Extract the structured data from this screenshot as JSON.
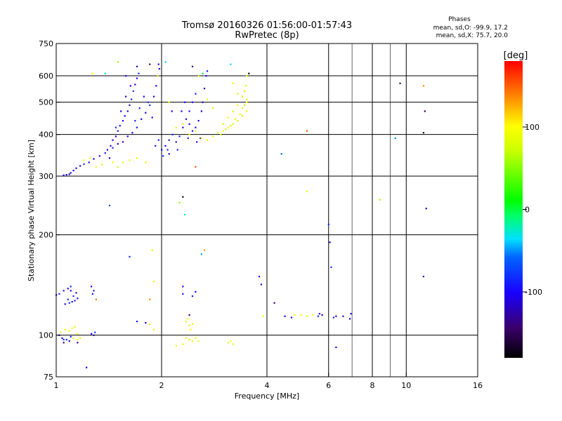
{
  "chart_data": {
    "type": "scatter",
    "title": "Tromsø 20160326 01:56:00-01:57:43",
    "subtitle": "RwPretec (8p)",
    "xlabel": "Frequency [MHz]",
    "ylabel": "Stationary phase Virtual Height [km]",
    "x_scale": "log",
    "y_scale": "log",
    "xlim": [
      1,
      16
    ],
    "ylim": [
      75,
      750
    ],
    "x_ticks": [
      1,
      2,
      4,
      6,
      8,
      10,
      16
    ],
    "x_tick_labels": [
      "1",
      "2",
      "4",
      "6",
      "8",
      "10",
      "16"
    ],
    "x_grid": [
      2,
      4,
      6,
      8,
      10
    ],
    "x_minor_grid": [
      7,
      9
    ],
    "y_ticks": [
      75,
      100,
      200,
      300,
      400,
      500,
      600,
      750
    ],
    "y_tick_labels": [
      "75",
      "100",
      "200",
      "300",
      "400",
      "500",
      "600",
      "750"
    ],
    "y_grid": [
      100,
      200,
      300,
      400,
      500,
      600
    ],
    "grid": true,
    "info": {
      "heading": "Phases",
      "line1": "mean, sd,O: -99.9, 17.2",
      "line2": "mean, sd,X: 75.7, 20.0"
    },
    "colorbar": {
      "label": "[deg]",
      "range": [
        -180,
        180
      ],
      "ticks": [
        100,
        0,
        -100
      ],
      "tick_labels": [
        "100",
        "0",
        "-100"
      ],
      "colormap": "rainbow: black(-180) → purple → blue(-100) → cyan(-40) → green(0) → yellow(100) → orange → red(180)"
    },
    "series": [
      {
        "role": "O-mode F-layer trace (blue, phase ≈ -100°)",
        "phase": -100,
        "points": [
          [
            1.05,
            302
          ],
          [
            1.07,
            303
          ],
          [
            1.09,
            304
          ],
          [
            1.1,
            307
          ],
          [
            1.12,
            312
          ],
          [
            1.14,
            317
          ],
          [
            1.17,
            322
          ],
          [
            1.2,
            326
          ],
          [
            1.24,
            330
          ],
          [
            1.28,
            338
          ],
          [
            1.33,
            345
          ],
          [
            1.38,
            352
          ],
          [
            1.4,
            360
          ],
          [
            1.43,
            370
          ],
          [
            1.45,
            385
          ],
          [
            1.48,
            395
          ],
          [
            1.5,
            410
          ],
          [
            1.52,
            425
          ],
          [
            1.55,
            440
          ],
          [
            1.57,
            455
          ],
          [
            1.6,
            470
          ],
          [
            1.62,
            490
          ],
          [
            1.64,
            510
          ],
          [
            1.66,
            540
          ],
          [
            1.68,
            565
          ],
          [
            1.7,
            590
          ],
          [
            1.72,
            610
          ],
          [
            1.55,
            380
          ],
          [
            1.6,
            395
          ],
          [
            1.65,
            405
          ],
          [
            1.7,
            420
          ],
          [
            1.75,
            445
          ],
          [
            1.8,
            465
          ],
          [
            1.85,
            490
          ],
          [
            1.9,
            520
          ],
          [
            1.93,
            560
          ],
          [
            1.95,
            600
          ],
          [
            1.97,
            630
          ],
          [
            1.92,
            370
          ],
          [
            1.96,
            385
          ],
          [
            2.0,
            360
          ],
          [
            2.05,
            370
          ],
          [
            2.1,
            385
          ],
          [
            2.15,
            400
          ],
          [
            2.2,
            380
          ],
          [
            2.25,
            395
          ],
          [
            2.3,
            420
          ],
          [
            2.35,
            445
          ],
          [
            2.4,
            470
          ],
          [
            2.45,
            500
          ],
          [
            2.5,
            530
          ],
          [
            2.45,
            410
          ],
          [
            2.5,
            420
          ],
          [
            2.55,
            440
          ],
          [
            2.6,
            470
          ],
          [
            2.62,
            500
          ],
          [
            2.65,
            550
          ],
          [
            2.68,
            600
          ],
          [
            2.7,
            620
          ],
          [
            2.58,
            390
          ],
          [
            1.48,
            420
          ],
          [
            1.53,
            470
          ],
          [
            1.58,
            520
          ],
          [
            1.63,
            560
          ],
          [
            1.78,
            520
          ],
          [
            1.83,
            500
          ],
          [
            1.88,
            450
          ],
          [
            2.28,
            470
          ],
          [
            2.33,
            500
          ],
          [
            2.1,
            350
          ],
          [
            1.45,
            365
          ],
          [
            1.5,
            375
          ],
          [
            1.42,
            340
          ],
          [
            1.68,
            440
          ],
          [
            1.73,
            480
          ],
          [
            2.02,
            345
          ],
          [
            2.08,
            360
          ],
          [
            2.22,
            360
          ],
          [
            2.38,
            390
          ],
          [
            2.52,
            380
          ],
          [
            1.58,
            600
          ],
          [
            1.7,
            640
          ],
          [
            1.96,
            650
          ],
          [
            2.14,
            470
          ],
          [
            2.4,
            430
          ]
        ]
      },
      {
        "role": "X-mode F-layer trace (green/yellow, phase ≈ 60–110°)",
        "phase": 80,
        "points": [
          [
            1.2,
            335
          ],
          [
            1.25,
            340
          ],
          [
            1.3,
            320
          ],
          [
            1.35,
            325
          ],
          [
            1.45,
            330
          ],
          [
            1.5,
            320
          ],
          [
            1.55,
            330
          ],
          [
            1.62,
            335
          ],
          [
            1.7,
            340
          ],
          [
            1.8,
            330
          ],
          [
            2.4,
            400
          ],
          [
            2.5,
            410
          ],
          [
            2.6,
            390
          ],
          [
            2.7,
            385
          ],
          [
            2.8,
            395
          ],
          [
            2.9,
            405
          ],
          [
            3.0,
            410
          ],
          [
            3.1,
            420
          ],
          [
            3.2,
            430
          ],
          [
            3.3,
            440
          ],
          [
            3.4,
            455
          ],
          [
            3.5,
            470
          ],
          [
            3.5,
            500
          ],
          [
            3.45,
            540
          ],
          [
            3.3,
            490
          ],
          [
            3.2,
            470
          ],
          [
            3.1,
            450
          ],
          [
            3.0,
            430
          ],
          [
            2.95,
            400
          ],
          [
            3.05,
            415
          ],
          [
            3.15,
            425
          ],
          [
            3.25,
            445
          ],
          [
            3.35,
            460
          ],
          [
            3.4,
            480
          ],
          [
            3.5,
            510
          ],
          [
            3.48,
            560
          ],
          [
            2.3,
            430
          ],
          [
            2.2,
            420
          ],
          [
            2.1,
            500
          ],
          [
            2.7,
            510
          ],
          [
            2.8,
            480
          ],
          [
            3.3,
            530
          ],
          [
            3.5,
            600
          ],
          [
            3.2,
            570
          ],
          [
            2.55,
            600
          ],
          [
            3.4,
            520
          ],
          [
            3.45,
            490
          ]
        ]
      },
      {
        "role": "sparse F-region points (mixed phase)",
        "phase": 0,
        "points": [
          [
            1.5,
            660
          ],
          [
            1.85,
            650
          ],
          [
            2.05,
            660
          ],
          [
            2.45,
            640
          ],
          [
            2.62,
            610
          ],
          [
            3.15,
            650
          ],
          [
            3.55,
            610
          ],
          [
            1.27,
            610
          ],
          [
            1.38,
            610
          ],
          [
            1.95,
            600
          ],
          [
            4.4,
            350
          ],
          [
            5.2,
            410
          ],
          [
            5.2,
            270
          ],
          [
            8.4,
            255
          ],
          [
            6.0,
            215
          ],
          [
            9.3,
            390
          ],
          [
            9.6,
            570
          ],
          [
            11.2,
            560
          ],
          [
            11.3,
            470
          ],
          [
            11.2,
            405
          ],
          [
            11.4,
            240
          ],
          [
            1.42,
            245
          ],
          [
            2.3,
            260
          ],
          [
            2.25,
            250
          ],
          [
            2.33,
            230
          ],
          [
            2.6,
            175
          ]
        ]
      },
      {
        "role": "O-mode E-layer trace (blue)",
        "phase": -100,
        "points": [
          [
            1.0,
            132
          ],
          [
            1.02,
            133
          ],
          [
            1.05,
            136
          ],
          [
            1.08,
            138
          ],
          [
            1.1,
            136
          ],
          [
            1.12,
            131
          ],
          [
            1.15,
            129
          ],
          [
            1.11,
            126
          ],
          [
            1.09,
            125
          ],
          [
            1.13,
            127
          ],
          [
            1.06,
            124
          ],
          [
            1.08,
            128
          ],
          [
            1.1,
            140
          ],
          [
            1.14,
            134
          ],
          [
            1.26,
            140
          ],
          [
            1.27,
            133
          ],
          [
            1.28,
            136
          ],
          [
            1.05,
            97
          ],
          [
            1.04,
            98
          ],
          [
            1.07,
            97
          ],
          [
            1.09,
            96
          ],
          [
            1.1,
            99
          ],
          [
            1.02,
            100
          ],
          [
            1.28,
            100
          ],
          [
            1.29,
            102
          ],
          [
            1.26,
            101
          ],
          [
            1.7,
            110
          ],
          [
            1.8,
            109
          ],
          [
            2.3,
            133
          ],
          [
            2.45,
            131
          ],
          [
            2.3,
            140
          ],
          [
            2.5,
            135
          ],
          [
            1.62,
            172
          ],
          [
            3.8,
            150
          ],
          [
            3.85,
            142
          ],
          [
            4.5,
            114
          ],
          [
            4.7,
            113
          ],
          [
            5.6,
            114
          ],
          [
            5.65,
            116
          ],
          [
            5.75,
            115
          ],
          [
            6.2,
            113
          ],
          [
            6.3,
            114
          ],
          [
            6.6,
            114
          ],
          [
            6.9,
            112
          ],
          [
            6.95,
            116
          ],
          [
            6.05,
            190
          ],
          [
            6.1,
            160
          ],
          [
            6.3,
            92
          ],
          [
            11.2,
            150
          ],
          [
            1.22,
            80
          ]
        ]
      },
      {
        "role": "X-mode E-layer trace (green/yellow)",
        "phase": 85,
        "points": [
          [
            1.03,
            102
          ],
          [
            1.06,
            104
          ],
          [
            1.09,
            103
          ],
          [
            1.11,
            105
          ],
          [
            1.13,
            106
          ],
          [
            1.15,
            101
          ],
          [
            1.17,
            98
          ],
          [
            1.15,
            97
          ],
          [
            1.12,
            98
          ],
          [
            2.35,
            110
          ],
          [
            2.4,
            107
          ],
          [
            2.45,
            108
          ],
          [
            2.38,
            112
          ],
          [
            2.42,
            104
          ],
          [
            2.4,
            97
          ],
          [
            2.45,
            96
          ],
          [
            2.55,
            96
          ],
          [
            2.5,
            98
          ],
          [
            2.3,
            94
          ],
          [
            2.2,
            93
          ],
          [
            2.35,
            98
          ],
          [
            3.1,
            95
          ],
          [
            3.2,
            94
          ],
          [
            3.15,
            96
          ],
          [
            3.9,
            114
          ],
          [
            4.8,
            115
          ],
          [
            5.0,
            115
          ],
          [
            5.2,
            114
          ],
          [
            5.4,
            115
          ],
          [
            1.85,
            108
          ],
          [
            1.9,
            104
          ],
          [
            1.88,
            180
          ],
          [
            1.9,
            145
          ]
        ]
      },
      {
        "role": "scattered points with other phases (red/orange/purple)",
        "phase": 150,
        "points": [
          [
            1.15,
            95
          ],
          [
            1.3,
            128
          ],
          [
            1.85,
            128
          ],
          [
            2.5,
            320
          ],
          [
            2.65,
            180
          ],
          [
            4.2,
            125
          ],
          [
            2.4,
            115
          ],
          [
            1.05,
            95
          ]
        ]
      }
    ]
  }
}
